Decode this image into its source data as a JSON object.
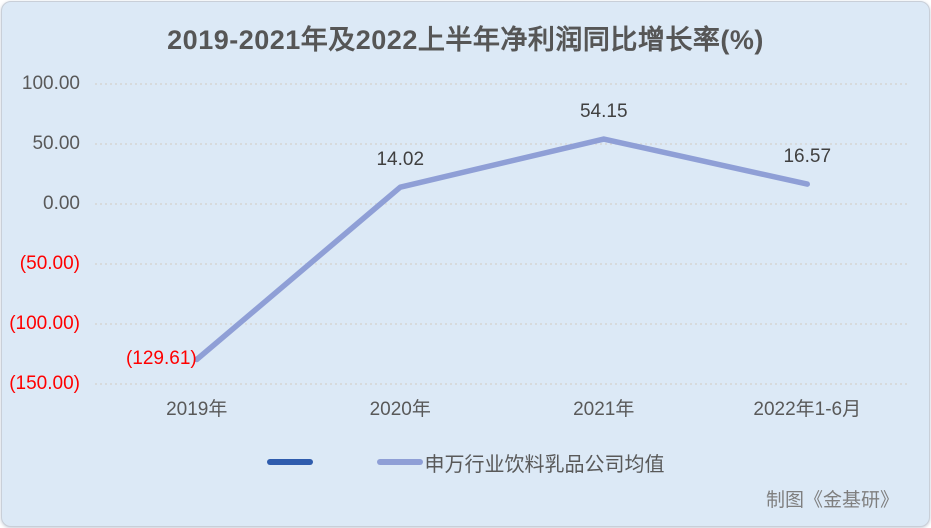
{
  "chart_data": {
    "type": "line",
    "title": "2019-2021年及2022上半年净利润同比增长率(%)",
    "categories": [
      "2019年",
      "2020年",
      "2021年",
      "2022年1-6月"
    ],
    "series": [
      {
        "name": "",
        "color": "#2f5cad",
        "values": []
      },
      {
        "name": "申万行业饮料乳品公司均值",
        "color": "#8f9fd6",
        "values": [
          -129.61,
          14.02,
          54.15,
          16.57
        ]
      }
    ],
    "data_labels": [
      "(129.61)",
      "14.02",
      "54.15",
      "16.57"
    ],
    "y_ticks": [
      {
        "value": 100,
        "label": "100.00"
      },
      {
        "value": 50,
        "label": "50.00"
      },
      {
        "value": 0,
        "label": "0.00"
      },
      {
        "value": -50,
        "label": "(50.00)"
      },
      {
        "value": -100,
        "label": "(100.00)"
      },
      {
        "value": -150,
        "label": "(150.00)"
      }
    ],
    "ylim": [
      -150,
      100
    ],
    "grid": true,
    "legend_position": "bottom",
    "colors": {
      "background": "#dce9f6",
      "title_text": "#565656",
      "axis_text": "#595959",
      "data_label_text": "#404040",
      "negative_text": "#ff0000",
      "gridline": "#d5d5d3",
      "series_line": "#8f9fd6",
      "legend_line_1": "#2f5cad"
    }
  },
  "footer": {
    "credit": "制图《金基研》"
  }
}
